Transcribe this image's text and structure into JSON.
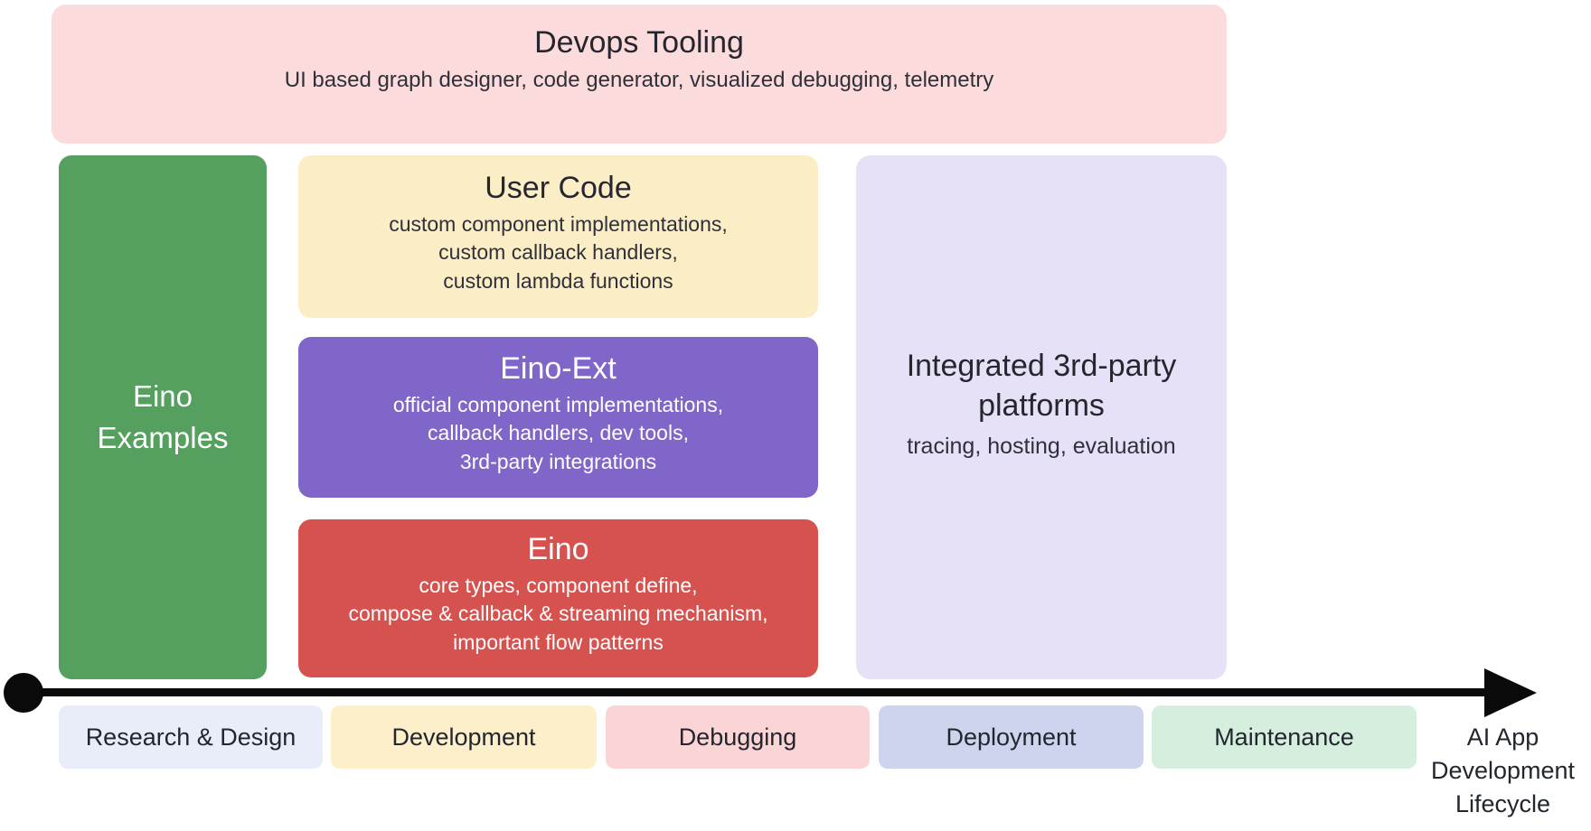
{
  "boxes": {
    "devops": {
      "title": "Devops Tooling",
      "desc": "UI based graph designer, code generator, visualized debugging, telemetry",
      "color": "#fbdbdc"
    },
    "examples": {
      "title": "Eino\nExamples",
      "color": "#55a05e"
    },
    "user_code": {
      "title": "User Code",
      "desc": "custom component implementations,\ncustom callback handlers,\ncustom lambda functions",
      "color": "#fbeec6"
    },
    "eino_ext": {
      "title": "Eino-Ext",
      "desc": "official component implementations,\ncallback handlers, dev tools,\n3rd-party integrations",
      "color": "#8066c9"
    },
    "eino": {
      "title": "Eino",
      "desc": "core types, component define,\ncompose & callback & streaming mechanism,\nimportant flow patterns",
      "color": "#d6524f"
    },
    "platforms": {
      "title": "Integrated 3rd-party\nplatforms",
      "desc": "tracing, hosting, evaluation",
      "color": "#e7e1f8"
    }
  },
  "timeline": {
    "stages": [
      {
        "label": "Research & Design",
        "color": "#e9edf9"
      },
      {
        "label": "Development",
        "color": "#fcefc9"
      },
      {
        "label": "Debugging",
        "color": "#fbd5d6"
      },
      {
        "label": "Deployment",
        "color": "#ccd4ee"
      },
      {
        "label": "Maintenance",
        "color": "#d5eedd"
      }
    ],
    "axis_label": "AI App\nDevelopment\nLifecycle",
    "axis_color": "#0a0a0a"
  }
}
